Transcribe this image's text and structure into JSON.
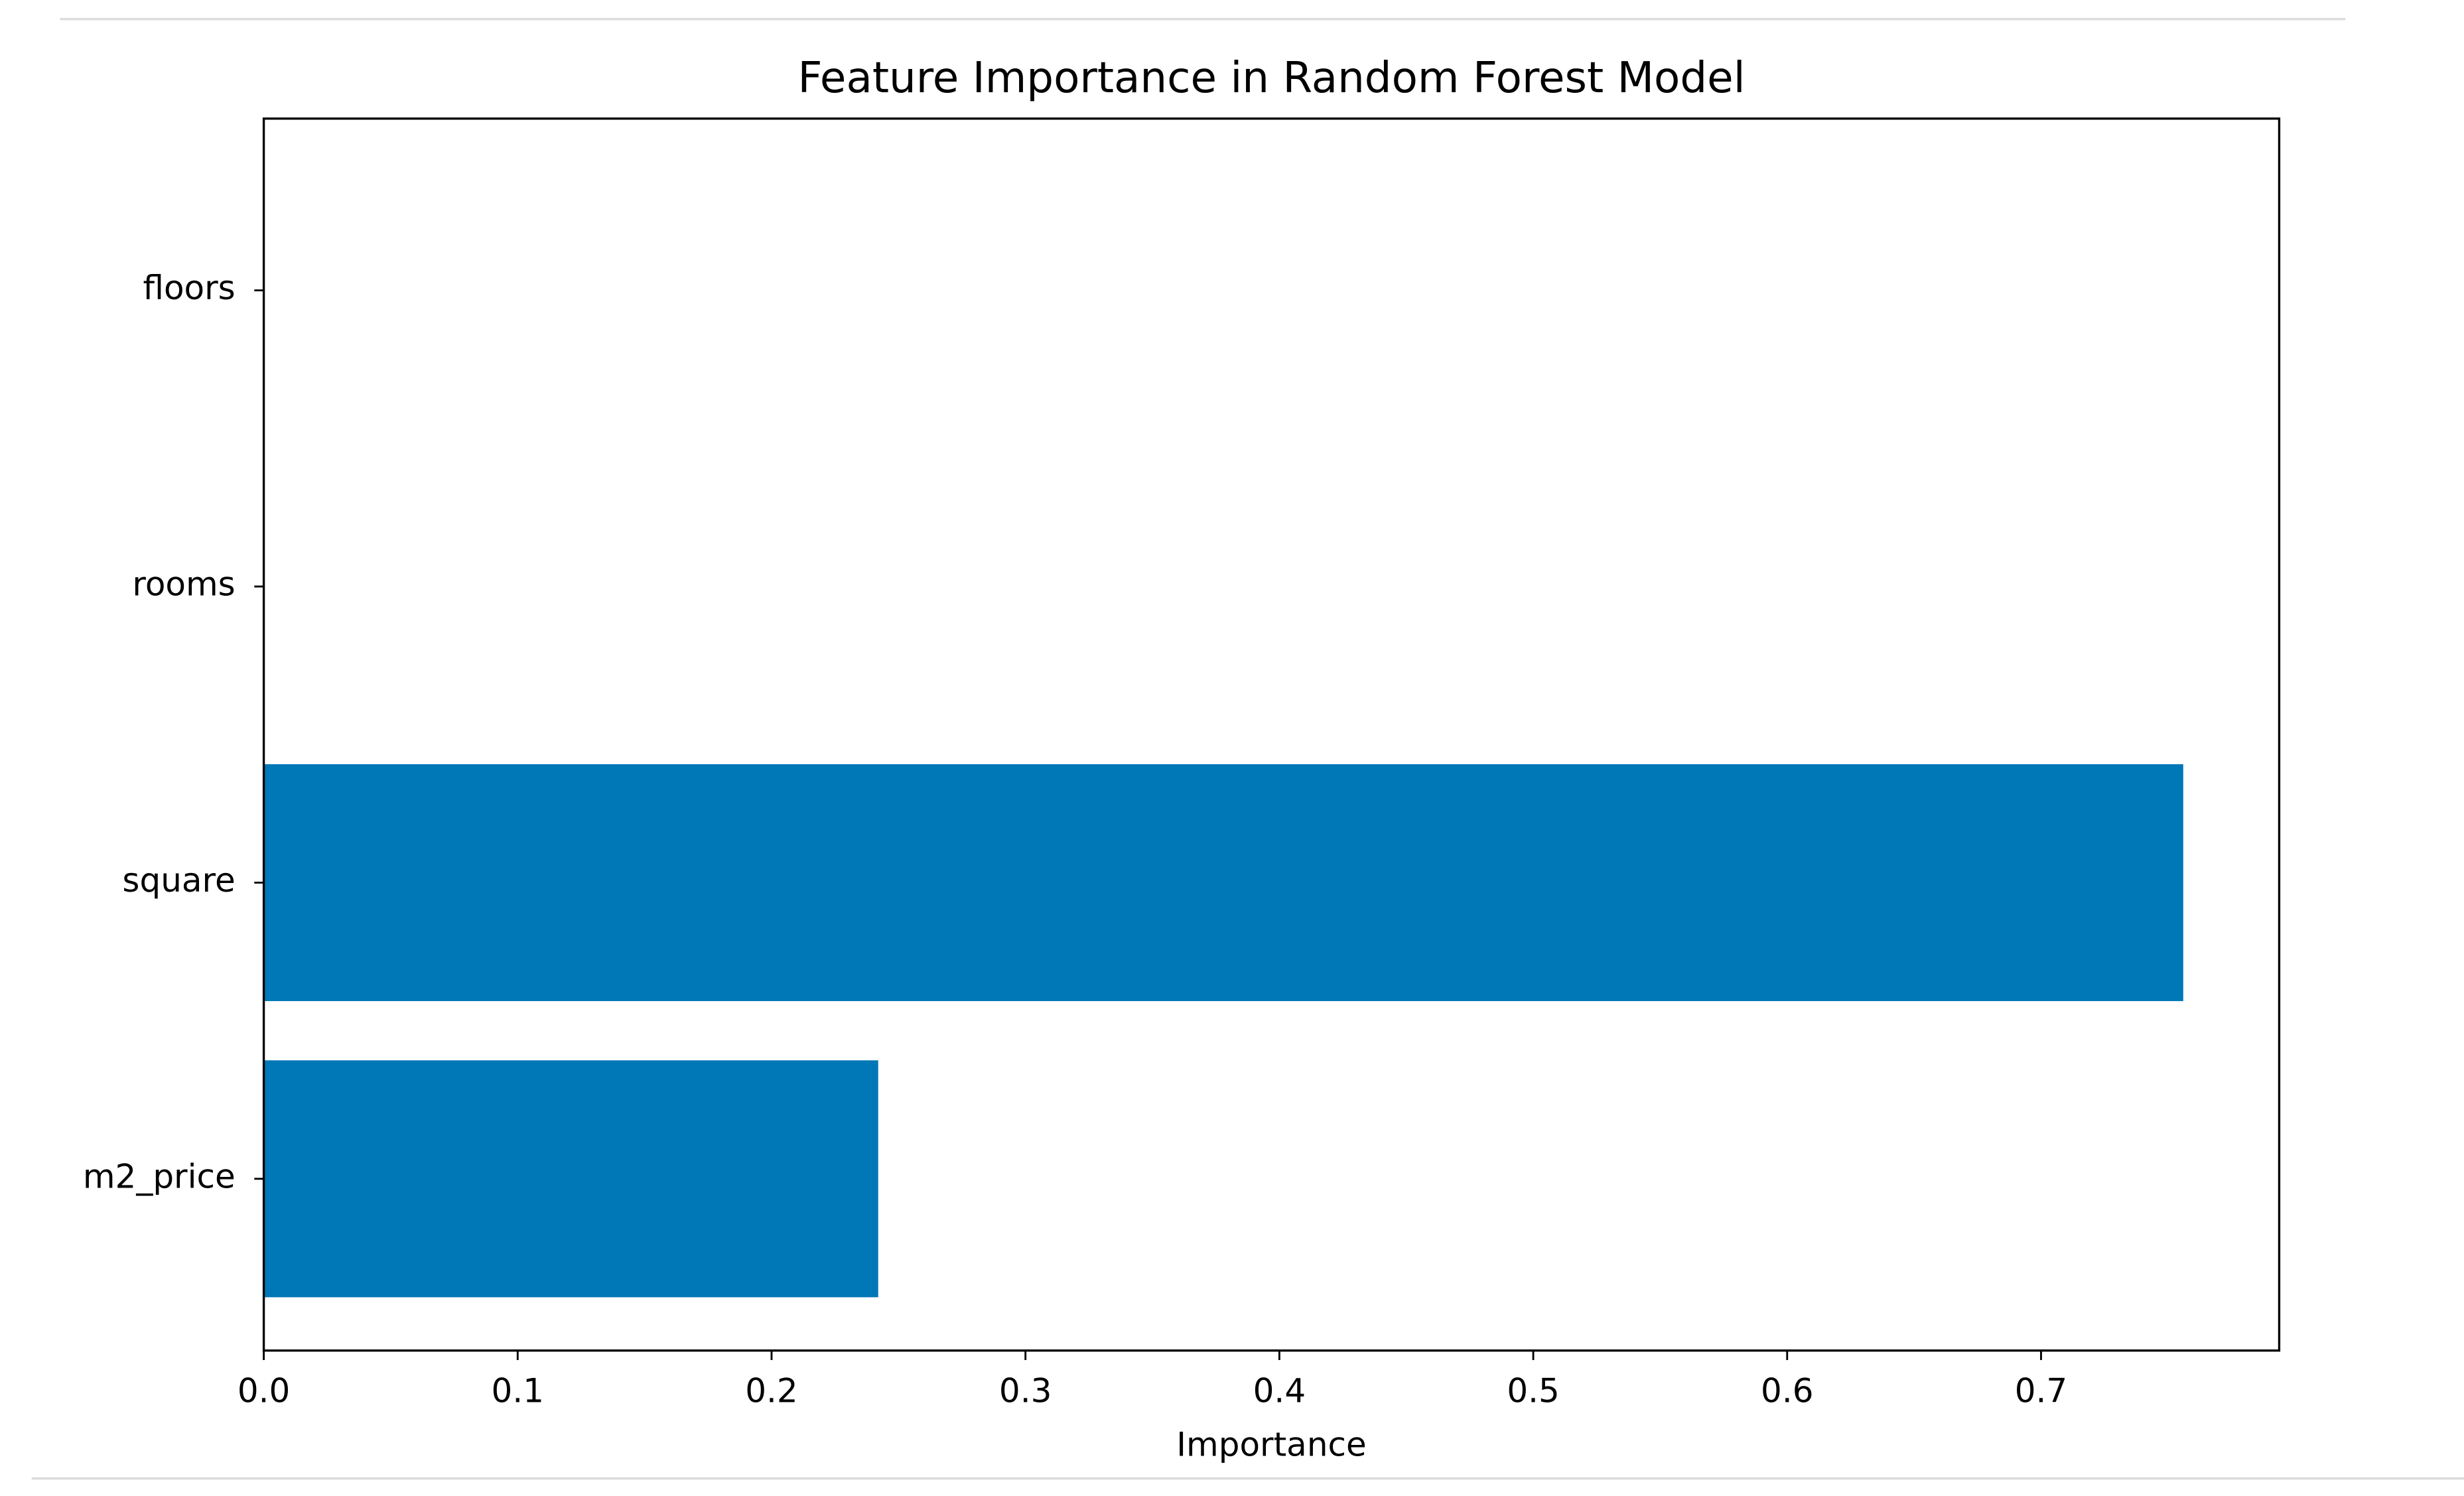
{
  "chart_data": {
    "type": "barh",
    "title": "Feature Importance in Random Forest Model",
    "xlabel": "Importance",
    "categories": [
      "m2_price",
      "square",
      "rooms",
      "floors"
    ],
    "values": [
      0.242,
      0.756,
      0,
      0
    ],
    "color": "#0077b7",
    "xlim": [
      0,
      0.7938
    ],
    "xticks": [
      {
        "value": 0,
        "label": "0.0"
      },
      0.1,
      0.2,
      0.3,
      0.4,
      0.5,
      0.6,
      0.7
    ]
  }
}
